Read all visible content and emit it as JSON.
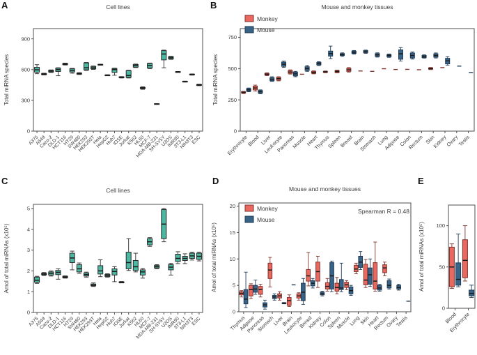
{
  "colors": {
    "teal": "#4CB8A2",
    "teal_border": "#2b2b2b",
    "monkey": "#E9685F",
    "monkey_border": "#7f332d",
    "mouse": "#3A6388",
    "mouse_border": "#1F3B55",
    "axis": "#4d4d4d",
    "text": "#3a3a3a"
  },
  "chart_data": [
    {
      "type": "box",
      "label": "A",
      "title": "Cell lines",
      "ylabel": "Total miRNA species",
      "yticks": [
        0,
        300,
        600,
        900
      ],
      "ymax": 1000,
      "categories": [
        "A375",
        "A549",
        "Caco-2",
        "DLD-1",
        "HCT116",
        "HT29",
        "SW480",
        "HEK293",
        "HEK293T",
        "Hela",
        "HepG2",
        "Huh7",
        "IOSE",
        "Jurkat",
        "K562",
        "HL60",
        "MCF-7",
        "MDA-MB-231",
        "SH-SY5Y",
        "U2OS",
        "IMR90",
        "3T3-L1",
        "NIH3T3",
        "ESC"
      ],
      "series": [
        {
          "name": "",
          "colorKey": "teal",
          "boxes": [
            [
              560,
              575,
              598,
              622,
              648
            ],
            [
              548,
              550,
              556,
              562,
              565
            ],
            [
              572,
              576,
              585,
              594,
              597
            ],
            [
              540,
              582,
              600,
              614,
              618
            ],
            [
              645,
              648,
              654,
              660,
              663
            ],
            [
              565,
              577,
              593,
              608,
              612
            ],
            [
              552,
              556,
              561,
              566,
              570
            ],
            [
              592,
              598,
              618,
              665,
              670
            ],
            [
              602,
              608,
              618,
              631,
              635
            ],
            [
              643,
              645,
              648,
              651,
              653
            ],
            [
              540,
              542,
              545,
              548,
              550
            ],
            [
              545,
              572,
              600,
              610,
              614
            ],
            [
              518,
              521,
              525,
              529,
              532
            ],
            [
              518,
              524,
              543,
              590,
              594
            ],
            [
              620,
              624,
              640,
              650,
              654
            ],
            [
              408,
              415,
              420,
              426,
              432
            ],
            [
              610,
              616,
              640,
              660,
              664
            ],
            [
              262,
              263,
              265,
              267,
              268
            ],
            [
              618,
              695,
              752,
              785,
              790
            ],
            [
              700,
              705,
              715,
              726,
              730
            ],
            [
              572,
              574,
              577,
              580,
              582
            ],
            [
              478,
              480,
              483,
              486,
              488
            ],
            [
              546,
              548,
              552,
              556,
              558
            ],
            [
              443,
              446,
              450,
              455,
              458
            ]
          ]
        }
      ]
    },
    {
      "type": "box",
      "label": "B",
      "title": "Mouse and monkey tissues",
      "ylabel": "Total miRNA species",
      "yticks": [
        0,
        250,
        500,
        750
      ],
      "ymax": 820,
      "legend": [
        "Monkey",
        "Mouse"
      ],
      "categories": [
        "Erythrocyte",
        "Blood",
        "Liver",
        "Leukocyte",
        "Pancreas",
        "Muscle",
        "Heart",
        "Thymus",
        "Spleen",
        "Breast",
        "Brain",
        "Stomach",
        "Lung",
        "Adipose",
        "Colon",
        "Rectum",
        "Skin",
        "Kidney",
        "Ovary",
        "Testis"
      ],
      "series": [
        {
          "name": "Monkey",
          "colorKey": "monkey",
          "boxes": [
            [
              300,
              305,
              310,
              315,
              318
            ],
            [
              320,
              330,
              345,
              360,
              368
            ],
            [
              444,
              448,
              455,
              462,
              466
            ],
            [
              402,
              408,
              420,
              430,
              435
            ],
            [
              456,
              462,
              473,
              484,
              490
            ],
            [
              455,
              455,
              455,
              455,
              455
            ],
            [
              458,
              462,
              470,
              478,
              482
            ],
            [
              467,
              470,
              474,
              478,
              481
            ],
            [
              466,
              470,
              477,
              484,
              488
            ],
            [
              472,
              478,
              490,
              502,
              508
            ],
            [
              481,
              481,
              481,
              481,
              481
            ],
            [
              478,
              478,
              478,
              478,
              478
            ],
            [
              499,
              499,
              499,
              499,
              499
            ],
            [
              493,
              493,
              493,
              493,
              493
            ],
            [
              494,
              494,
              494,
              494,
              494
            ],
            [
              491,
              491,
              491,
              491,
              491
            ],
            [
              492,
              495,
              500,
              506,
              509
            ],
            [
              508,
              508,
              508,
              508,
              508
            ],
            null,
            null
          ]
        },
        {
          "name": "Mouse",
          "colorKey": "mouse",
          "boxes": [
            [
              315,
              320,
              330,
              340,
              345
            ],
            [
              298,
              305,
              315,
              325,
              330
            ],
            [
              398,
              403,
              415,
              427,
              435
            ],
            [
              510,
              518,
              535,
              552,
              560
            ],
            [
              435,
              442,
              458,
              472,
              478
            ],
            [
              478,
              485,
              500,
              515,
              525
            ],
            [
              524,
              530,
              540,
              550,
              555
            ],
            [
              580,
              600,
              620,
              640,
              680
            ],
            [
              598,
              605,
              612,
              620,
              626
            ],
            [
              616,
              622,
              630,
              640,
              645
            ],
            [
              622,
              628,
              635,
              644,
              648
            ],
            [
              592,
              598,
              610,
              620,
              626
            ],
            [
              590,
              595,
              605,
              612,
              617
            ],
            [
              560,
              575,
              618,
              650,
              668
            ],
            [
              576,
              585,
              605,
              625,
              633
            ],
            [
              584,
              588,
              597,
              605,
              610
            ],
            [
              585,
              592,
              605,
              618,
              625
            ],
            [
              528,
              538,
              562,
              582,
              595
            ],
            [
              520,
              520,
              520,
              520,
              520
            ],
            [
              468,
              468,
              468,
              468,
              468
            ]
          ]
        }
      ]
    },
    {
      "type": "box",
      "label": "C",
      "title": "Cell lines",
      "ylabel": "Amol of total miRNAs (x10⁵)",
      "yticks": [
        0,
        1,
        2,
        3,
        4,
        5
      ],
      "ymax": 5.2,
      "categories": [
        "A375",
        "A549",
        "Caco-2",
        "DLD-1",
        "HCT116",
        "HT29",
        "SW480",
        "HEK293",
        "HEK293T",
        "Hela",
        "HepG2",
        "Huh7",
        "IOSE",
        "Jurkat",
        "K562",
        "HL60",
        "MCF-7",
        "MDA-MB-231",
        "SH-SY5Y",
        "U2OS",
        "IMR90",
        "3T3-L1",
        "NIH3T3",
        "ESC"
      ],
      "series": [
        {
          "name": "",
          "colorKey": "teal",
          "boxes": [
            [
              1.4,
              1.45,
              1.55,
              1.7,
              1.74
            ],
            [
              1.78,
              1.81,
              1.85,
              1.89,
              1.92
            ],
            [
              1.75,
              1.8,
              1.88,
              1.95,
              2.0
            ],
            [
              1.6,
              1.82,
              1.93,
              2.02,
              2.1
            ],
            [
              1.65,
              1.67,
              1.7,
              1.74,
              1.76
            ],
            [
              2.05,
              2.4,
              2.62,
              2.85,
              2.95
            ],
            [
              1.88,
              1.95,
              2.1,
              2.3,
              2.38
            ],
            [
              1.7,
              1.75,
              1.82,
              1.9,
              1.94
            ],
            [
              1.25,
              1.28,
              1.32,
              1.37,
              1.42
            ],
            [
              1.72,
              1.85,
              2.0,
              2.25,
              2.53
            ],
            [
              1.7,
              1.73,
              1.78,
              1.83,
              1.86
            ],
            [
              1.48,
              1.8,
              1.97,
              2.1,
              2.2
            ],
            [
              1.42,
              1.43,
              1.45,
              1.47,
              1.49
            ],
            [
              2.02,
              2.1,
              2.4,
              2.9,
              3.55
            ],
            [
              1.95,
              2.02,
              2.2,
              2.5,
              2.85
            ],
            [
              1.65,
              1.8,
              1.95,
              2.05,
              2.12
            ],
            [
              3.18,
              3.25,
              3.4,
              3.55,
              3.6
            ],
            [
              2.1,
              2.14,
              2.2,
              2.26,
              2.3
            ],
            [
              3.4,
              3.55,
              4.25,
              4.95,
              5.0
            ],
            [
              1.8,
              2.05,
              2.18,
              2.3,
              2.36
            ],
            [
              2.35,
              2.45,
              2.6,
              2.8,
              2.92
            ],
            [
              2.35,
              2.5,
              2.6,
              2.7,
              2.82
            ],
            [
              2.52,
              2.6,
              2.72,
              2.85,
              2.9
            ],
            [
              2.48,
              2.55,
              2.7,
              2.85,
              2.9
            ]
          ]
        }
      ]
    },
    {
      "type": "box",
      "label": "D",
      "title": "Mouse and monkey tissues",
      "ylabel": "Amol of total miRNAs (x10⁵)",
      "yticks": [
        0,
        5,
        10,
        15,
        20
      ],
      "ymax": 20.6,
      "legend": [
        "Monkey",
        "Mouse"
      ],
      "annotation": "Spearman R = 0.48",
      "categories": [
        "Thymus",
        "Adipose",
        "Pancreas",
        "Stomach",
        "Liver",
        "Brain",
        "Leukocyte",
        "Breast",
        "Kidney",
        "Colon",
        "Spleen",
        "Muscle",
        "Lung",
        "Skin",
        "Heart",
        "Rectum",
        "Ovary",
        "Testis"
      ],
      "series": [
        {
          "name": "Monkey",
          "colorKey": "monkey",
          "boxes": [
            [
              2.8,
              3.2,
              3.5,
              3.8,
              4.0
            ],
            [
              2.5,
              3.0,
              4.2,
              5.0,
              5.3
            ],
            [
              2.8,
              3.3,
              4.2,
              4.8,
              5.2
            ],
            [
              4.7,
              6.3,
              7.9,
              9.2,
              10.3
            ],
            [
              2.2,
              2.6,
              3.0,
              3.4,
              3.8
            ],
            [
              1.0,
              1.2,
              2.1,
              2.7,
              3.2
            ],
            [
              2.2,
              2.6,
              3.0,
              3.4,
              3.6
            ],
            [
              4.9,
              5.8,
              6.8,
              8.0,
              11.2
            ],
            [
              4.6,
              5.8,
              7.6,
              9.4,
              10.5
            ],
            [
              3.9,
              4.3,
              4.8,
              5.5,
              6.3
            ],
            [
              3.4,
              3.9,
              4.6,
              5.4,
              6.5
            ],
            [
              4.2,
              4.6,
              5.1,
              5.6,
              5.9
            ],
            [
              7.2,
              7.6,
              8.1,
              8.8,
              9.2
            ],
            [
              4.6,
              5.1,
              6.0,
              9.0,
              9.9
            ],
            [
              3.9,
              4.3,
              5.8,
              9.3,
              13.2
            ],
            [
              6.8,
              7.4,
              8.3,
              8.9,
              9.4
            ],
            null,
            null
          ]
        },
        {
          "name": "Mouse",
          "colorKey": "mouse",
          "boxes": [
            [
              0.8,
              1.5,
              2.4,
              4.2,
              7.5
            ],
            [
              3.3,
              3.7,
              4.3,
              5.0,
              6.0
            ],
            [
              0.5,
              0.9,
              1.3,
              1.7,
              2.2
            ],
            [
              2.2,
              2.5,
              2.8,
              3.1,
              3.4
            ],
            [
              1.5,
              1.55,
              1.6,
              1.7,
              1.75
            ],
            [
              5.1,
              5.1,
              5.1,
              5.1,
              5.1
            ],
            [
              1.4,
              2.1,
              3.7,
              5.4,
              6.3
            ],
            [
              4.5,
              4.9,
              5.4,
              5.9,
              6.3
            ],
            [
              3.0,
              3.2,
              3.4,
              3.7,
              3.9
            ],
            [
              3.8,
              4.3,
              6.8,
              9.3,
              9.6
            ],
            [
              3.8,
              4.2,
              4.5,
              6.1,
              9.2
            ],
            [
              3.1,
              3.4,
              4.0,
              4.7,
              5.0
            ],
            [
              8.0,
              8.4,
              9.4,
              10.5,
              11.4
            ],
            [
              4.8,
              5.2,
              7.0,
              8.3,
              10.0
            ],
            [
              3.9,
              4.1,
              4.5,
              5.0,
              5.2
            ],
            [
              4.3,
              4.5,
              5.0,
              5.9,
              6.2
            ],
            [
              4.1,
              4.3,
              4.6,
              5.0,
              5.2
            ],
            [
              2.0,
              2.0,
              2.0,
              2.0,
              2.0
            ]
          ]
        }
      ]
    },
    {
      "type": "box",
      "label": "E",
      "title": "",
      "ylabel": "Amol of total miRNAs (x10⁵)",
      "yticks": [
        0,
        50,
        100
      ],
      "ymax": 125,
      "categories": [
        "Blood",
        "Erythrocyte"
      ],
      "series": [
        {
          "name": "Monkey",
          "colorKey": "monkey",
          "boxes": [
            [
              24,
              26,
              50,
              74,
              78
            ],
            [
              33,
              37,
              58,
              83,
              100
            ]
          ]
        },
        {
          "name": "Mouse",
          "colorKey": "mouse",
          "boxes": [
            [
              26,
              28,
              35,
              55,
              90
            ],
            [
              13,
              15,
              18,
              22,
              28
            ]
          ]
        }
      ]
    }
  ]
}
